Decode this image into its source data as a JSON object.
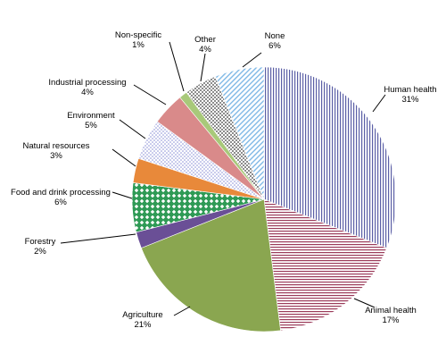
{
  "chart_data": {
    "type": "pie",
    "start_angle_deg": 0,
    "direction": "clockwise",
    "legend": "none",
    "slices": [
      {
        "label": "Human health",
        "value": 31,
        "value_label": "31%",
        "color": "#5b5fa6",
        "pattern": "vertical-stripes"
      },
      {
        "label": "Animal health",
        "value": 17,
        "value_label": "17%",
        "color": "#9b3b5a",
        "pattern": "horizontal-stripes"
      },
      {
        "label": "Agriculture",
        "value": 21,
        "value_label": "21%",
        "color": "#8aa650",
        "pattern": "solid"
      },
      {
        "label": "Forestry",
        "value": 2,
        "value_label": "2%",
        "color": "#6a4f96",
        "pattern": "solid"
      },
      {
        "label": "Food and drink processing",
        "value": 6,
        "value_label": "6%",
        "color": "#2e9a55",
        "pattern": "diamonds"
      },
      {
        "label": "Natural resources",
        "value": 3,
        "value_label": "3%",
        "color": "#e8893a",
        "pattern": "solid"
      },
      {
        "label": "Environment",
        "value": 5,
        "value_label": "5%",
        "color": "#8a8fd6",
        "pattern": "dots"
      },
      {
        "label": "Industrial processing",
        "value": 4,
        "value_label": "4%",
        "color": "#d98a8a",
        "pattern": "solid"
      },
      {
        "label": "Non-specific",
        "value": 1,
        "value_label": "1%",
        "color": "#a8c97a",
        "pattern": "solid"
      },
      {
        "label": "Other",
        "value": 4,
        "value_label": "4%",
        "color": "#8c8c8c",
        "pattern": "checker"
      },
      {
        "label": "None",
        "value": 6,
        "value_label": "6%",
        "color": "#7fb8e6",
        "pattern": "diagonal-stripes"
      }
    ]
  }
}
